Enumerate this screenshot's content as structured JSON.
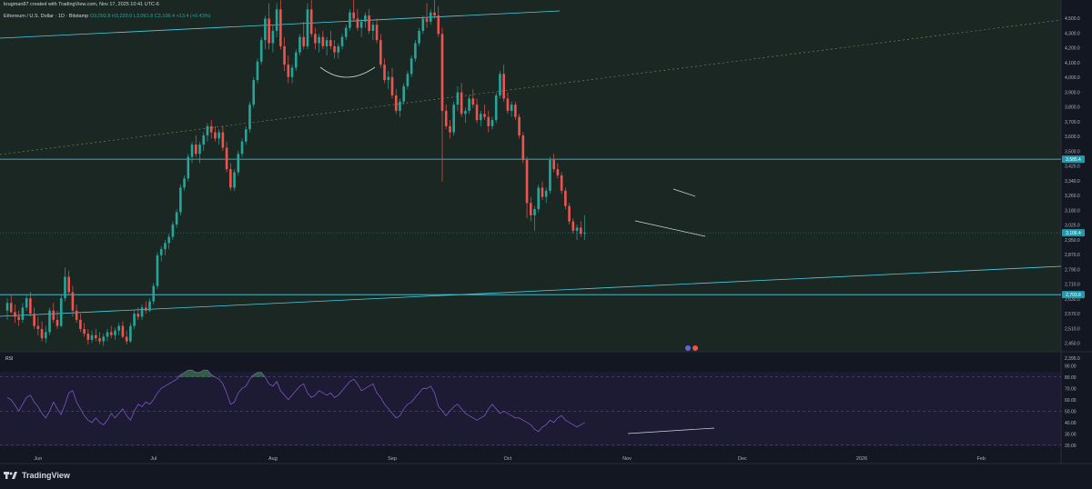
{
  "header": {
    "author_line": "krugman87 created with TradingView.com, Nov 17, 2025 10:41 UTC-6",
    "symbol_line": "Ethereum / U.S. Dollar · 1D · Bitstamp",
    "ohlc": "O3,092.8  H3,220.0  L3,061.8  C3,106.4  +13.4 (+0.43%)"
  },
  "price_axis_labels": [
    "4,500.0",
    "4,300.0",
    "4,200.0",
    "4,100.0",
    "4,000.0",
    "3,900.0",
    "3,800.0",
    "3,700.0",
    "3,600.0",
    "3,500.0",
    "3,420.0",
    "3,340.0",
    "3,260.0",
    "3,180.0",
    "3,025.0",
    "2,950.0",
    "2,870.0",
    "2,790.0",
    "2,710.0",
    "2,630.0",
    "2,570.0",
    "2,510.0",
    "2,450.0",
    "2,395.0"
  ],
  "price_badges": {
    "resistance": "3,585.4",
    "last": "3,106.4",
    "support": "2,703.8"
  },
  "rsi": {
    "label": "RSI",
    "axis_labels": [
      "90.00",
      "80.00",
      "70.00",
      "60.00",
      "50.00",
      "40.00",
      "30.00",
      "20.00"
    ],
    "upper_band": 80,
    "lower_band": 20,
    "middle": 50
  },
  "time_axis_labels": [
    "Jun",
    "Jul",
    "Aug",
    "Sep",
    "Oct",
    "Nov",
    "Dec",
    "2026",
    "Feb"
  ],
  "brand": "TradingView",
  "colors": {
    "background": "#131722",
    "up": "#26a69a",
    "down": "#ef5350",
    "trendline": "#4dd0e1",
    "rsi_line": "#7e57c2",
    "text": "#d1d4dc"
  },
  "chart_data": {
    "type": "candlestick",
    "title": "Ethereum / U.S. Dollar · 1D · Bitstamp",
    "ylim": [
      2350,
      4550
    ],
    "rsi_ylim": [
      15,
      95
    ],
    "x_ticks": [
      {
        "label": "Jun",
        "index": 8
      },
      {
        "label": "Jul",
        "index": 38
      },
      {
        "label": "Aug",
        "index": 69
      },
      {
        "label": "Sep",
        "index": 100
      },
      {
        "label": "Oct",
        "index": 130
      },
      {
        "label": "Nov",
        "index": 161
      },
      {
        "label": "Dec",
        "index": 191
      },
      {
        "label": "2026",
        "index": 222
      },
      {
        "label": "Feb",
        "index": 253
      }
    ],
    "horizontal_levels": [
      3585.4,
      2703.8
    ],
    "last_close": 3106.4,
    "candles": [
      [
        2600,
        2680,
        2540,
        2650
      ],
      [
        2650,
        2700,
        2580,
        2590
      ],
      [
        2590,
        2640,
        2520,
        2560
      ],
      [
        2560,
        2600,
        2500,
        2540
      ],
      [
        2540,
        2650,
        2520,
        2620
      ],
      [
        2620,
        2700,
        2600,
        2680
      ],
      [
        2680,
        2720,
        2560,
        2580
      ],
      [
        2580,
        2620,
        2480,
        2500
      ],
      [
        2500,
        2560,
        2440,
        2480
      ],
      [
        2480,
        2530,
        2400,
        2420
      ],
      [
        2420,
        2500,
        2390,
        2460
      ],
      [
        2460,
        2620,
        2440,
        2600
      ],
      [
        2600,
        2650,
        2520,
        2540
      ],
      [
        2540,
        2600,
        2480,
        2500
      ],
      [
        2500,
        2700,
        2490,
        2680
      ],
      [
        2680,
        2880,
        2660,
        2820
      ],
      [
        2820,
        2860,
        2700,
        2720
      ],
      [
        2720,
        2760,
        2560,
        2600
      ],
      [
        2600,
        2640,
        2520,
        2540
      ],
      [
        2540,
        2580,
        2460,
        2480
      ],
      [
        2480,
        2520,
        2430,
        2450
      ],
      [
        2450,
        2480,
        2380,
        2410
      ],
      [
        2410,
        2470,
        2390,
        2440
      ],
      [
        2440,
        2480,
        2400,
        2420
      ],
      [
        2420,
        2460,
        2380,
        2400
      ],
      [
        2400,
        2450,
        2370,
        2430
      ],
      [
        2430,
        2480,
        2400,
        2460
      ],
      [
        2460,
        2500,
        2420,
        2440
      ],
      [
        2440,
        2490,
        2410,
        2470
      ],
      [
        2470,
        2520,
        2440,
        2500
      ],
      [
        2500,
        2530,
        2420,
        2430
      ],
      [
        2430,
        2470,
        2380,
        2400
      ],
      [
        2400,
        2520,
        2390,
        2500
      ],
      [
        2500,
        2600,
        2480,
        2580
      ],
      [
        2580,
        2620,
        2540,
        2560
      ],
      [
        2560,
        2640,
        2540,
        2620
      ],
      [
        2620,
        2660,
        2580,
        2600
      ],
      [
        2600,
        2680,
        2590,
        2660
      ],
      [
        2660,
        2780,
        2640,
        2760
      ],
      [
        2760,
        2980,
        2740,
        2960
      ],
      [
        2960,
        3020,
        2920,
        3000
      ],
      [
        3000,
        3060,
        2960,
        3040
      ],
      [
        3040,
        3100,
        3000,
        3080
      ],
      [
        3080,
        3180,
        3060,
        3160
      ],
      [
        3160,
        3260,
        3140,
        3240
      ],
      [
        3240,
        3420,
        3220,
        3400
      ],
      [
        3400,
        3480,
        3380,
        3460
      ],
      [
        3460,
        3620,
        3440,
        3600
      ],
      [
        3600,
        3700,
        3560,
        3680
      ],
      [
        3680,
        3740,
        3600,
        3620
      ],
      [
        3620,
        3700,
        3560,
        3680
      ],
      [
        3680,
        3760,
        3640,
        3740
      ],
      [
        3740,
        3820,
        3700,
        3800
      ],
      [
        3800,
        3840,
        3720,
        3760
      ],
      [
        3760,
        3800,
        3700,
        3720
      ],
      [
        3720,
        3780,
        3680,
        3760
      ],
      [
        3760,
        3800,
        3640,
        3660
      ],
      [
        3660,
        3700,
        3500,
        3520
      ],
      [
        3520,
        3560,
        3380,
        3400
      ],
      [
        3400,
        3520,
        3380,
        3500
      ],
      [
        3500,
        3640,
        3480,
        3620
      ],
      [
        3620,
        3720,
        3600,
        3700
      ],
      [
        3700,
        3800,
        3680,
        3780
      ],
      [
        3780,
        3960,
        3760,
        3940
      ],
      [
        3940,
        4120,
        3920,
        4100
      ],
      [
        4100,
        4240,
        4080,
        4220
      ],
      [
        4220,
        4380,
        4200,
        4360
      ],
      [
        4360,
        4520,
        4300,
        4500
      ],
      [
        4500,
        4600,
        4300,
        4340
      ],
      [
        4340,
        4460,
        4280,
        4420
      ],
      [
        4420,
        4600,
        4380,
        4560
      ],
      [
        4560,
        4620,
        4300,
        4320
      ],
      [
        4320,
        4380,
        4160,
        4200
      ],
      [
        4200,
        4260,
        4080,
        4120
      ],
      [
        4120,
        4200,
        4080,
        4180
      ],
      [
        4180,
        4300,
        4160,
        4280
      ],
      [
        4280,
        4400,
        4260,
        4380
      ],
      [
        4380,
        4480,
        4300,
        4320
      ],
      [
        4320,
        4600,
        4300,
        4560
      ],
      [
        4560,
        4620,
        4380,
        4400
      ],
      [
        4400,
        4440,
        4300,
        4340
      ],
      [
        4340,
        4400,
        4280,
        4380
      ],
      [
        4380,
        4420,
        4300,
        4320
      ],
      [
        4320,
        4380,
        4260,
        4360
      ],
      [
        4360,
        4420,
        4300,
        4320
      ],
      [
        4320,
        4360,
        4240,
        4280
      ],
      [
        4280,
        4340,
        4240,
        4320
      ],
      [
        4320,
        4400,
        4300,
        4380
      ],
      [
        4380,
        4460,
        4360,
        4440
      ],
      [
        4440,
        4560,
        4420,
        4540
      ],
      [
        4540,
        4620,
        4480,
        4500
      ],
      [
        4500,
        4560,
        4420,
        4440
      ],
      [
        4440,
        4500,
        4380,
        4480
      ],
      [
        4480,
        4540,
        4440,
        4520
      ],
      [
        4520,
        4560,
        4400,
        4420
      ],
      [
        4420,
        4480,
        4360,
        4460
      ],
      [
        4460,
        4500,
        4340,
        4360
      ],
      [
        4360,
        4400,
        4180,
        4200
      ],
      [
        4200,
        4240,
        4080,
        4100
      ],
      [
        4100,
        4160,
        4040,
        4120
      ],
      [
        4120,
        4180,
        3980,
        4000
      ],
      [
        4000,
        4040,
        3880,
        3900
      ],
      [
        3900,
        3980,
        3860,
        3960
      ],
      [
        3960,
        4080,
        3940,
        4060
      ],
      [
        4060,
        4160,
        4040,
        4140
      ],
      [
        4140,
        4260,
        4120,
        4240
      ],
      [
        4240,
        4360,
        4220,
        4340
      ],
      [
        4340,
        4440,
        4320,
        4420
      ],
      [
        4420,
        4520,
        4400,
        4500
      ],
      [
        4500,
        4600,
        4440,
        4480
      ],
      [
        4480,
        4560,
        4460,
        4540
      ],
      [
        4540,
        4620,
        4500,
        4520
      ],
      [
        4520,
        4580,
        4380,
        4400
      ],
      [
        4400,
        4440,
        3440,
        3900
      ],
      [
        3900,
        3940,
        3780,
        3800
      ],
      [
        3800,
        3840,
        3720,
        3760
      ],
      [
        3760,
        3960,
        3740,
        3940
      ],
      [
        3940,
        4060,
        3900,
        4020
      ],
      [
        4020,
        4080,
        3860,
        3880
      ],
      [
        3880,
        3920,
        3820,
        3900
      ],
      [
        3900,
        4000,
        3880,
        3980
      ],
      [
        3980,
        4040,
        3920,
        3940
      ],
      [
        3940,
        3980,
        3820,
        3840
      ],
      [
        3840,
        3900,
        3800,
        3880
      ],
      [
        3880,
        3940,
        3840,
        3860
      ],
      [
        3860,
        3900,
        3760,
        3800
      ],
      [
        3800,
        3860,
        3780,
        3840
      ],
      [
        3840,
        4020,
        3820,
        4000
      ],
      [
        4000,
        4160,
        3980,
        4140
      ],
      [
        4140,
        4200,
        3960,
        3980
      ],
      [
        3980,
        4020,
        3880,
        3900
      ],
      [
        3900,
        3960,
        3860,
        3940
      ],
      [
        3940,
        3960,
        3840,
        3860
      ],
      [
        3860,
        3880,
        3720,
        3740
      ],
      [
        3740,
        3760,
        3560,
        3580
      ],
      [
        3580,
        3600,
        3200,
        3300
      ],
      [
        3300,
        3340,
        3180,
        3220
      ],
      [
        3220,
        3280,
        3120,
        3260
      ],
      [
        3260,
        3420,
        3240,
        3400
      ],
      [
        3400,
        3440,
        3320,
        3340
      ],
      [
        3340,
        3400,
        3300,
        3380
      ],
      [
        3380,
        3600,
        3360,
        3580
      ],
      [
        3580,
        3620,
        3500,
        3520
      ],
      [
        3520,
        3560,
        3460,
        3480
      ],
      [
        3480,
        3500,
        3360,
        3380
      ],
      [
        3380,
        3400,
        3260,
        3280
      ],
      [
        3280,
        3300,
        3160,
        3180
      ],
      [
        3180,
        3200,
        3100,
        3120
      ],
      [
        3120,
        3160,
        3060,
        3140
      ],
      [
        3140,
        3180,
        3080,
        3100
      ],
      [
        3100,
        3220,
        3060,
        3106
      ]
    ],
    "rsi_values": [
      62,
      60,
      55,
      50,
      56,
      62,
      64,
      58,
      54,
      48,
      44,
      50,
      58,
      52,
      47,
      56,
      66,
      68,
      58,
      52,
      46,
      42,
      40,
      44,
      40,
      38,
      42,
      48,
      44,
      48,
      52,
      46,
      42,
      50,
      56,
      54,
      58,
      56,
      60,
      66,
      70,
      72,
      74,
      76,
      78,
      82,
      84,
      86,
      86,
      84,
      84,
      86,
      86,
      82,
      80,
      78,
      74,
      66,
      56,
      58,
      66,
      70,
      72,
      78,
      82,
      84,
      84,
      80,
      74,
      72,
      76,
      68,
      64,
      60,
      64,
      68,
      72,
      74,
      66,
      62,
      64,
      68,
      66,
      64,
      66,
      62,
      64,
      68,
      72,
      76,
      78,
      74,
      68,
      70,
      72,
      74,
      66,
      62,
      56,
      52,
      48,
      44,
      46,
      52,
      56,
      58,
      62,
      66,
      70,
      70,
      72,
      66,
      54,
      50,
      46,
      50,
      54,
      56,
      52,
      48,
      46,
      44,
      42,
      44,
      46,
      52,
      56,
      52,
      48,
      50,
      48,
      46,
      44,
      44,
      42,
      40,
      38,
      34,
      32,
      36,
      38,
      42,
      40,
      44,
      46,
      42,
      40,
      38,
      36,
      38,
      40
    ]
  }
}
